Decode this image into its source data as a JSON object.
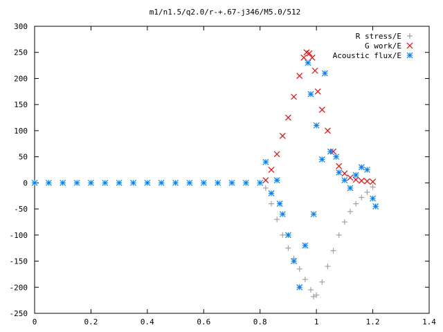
{
  "chart_data": {
    "type": "scatter",
    "title": "m1/n1.5/q2.0/r-+.67-j346/M5.0/512",
    "xlabel": "",
    "ylabel": "",
    "xlim": [
      0,
      1.4
    ],
    "ylim": [
      -250,
      300
    ],
    "xticks": [
      "0",
      "0.2",
      "0.4",
      "0.6",
      "0.8",
      "1",
      "1.2",
      "1.4"
    ],
    "yticks": [
      "300",
      "250",
      "200",
      "150",
      "100",
      "50",
      "0",
      "-50",
      "-100",
      "-150",
      "-200",
      "-250"
    ],
    "grid": false,
    "legend_position": "top-right",
    "series": [
      {
        "name": "R stress/E",
        "marker": "plus",
        "color": "#a0a0a0",
        "points": [
          [
            0.82,
            -10
          ],
          [
            0.84,
            -40
          ],
          [
            0.86,
            -70
          ],
          [
            0.88,
            -100
          ],
          [
            0.9,
            -125
          ],
          [
            0.92,
            -145
          ],
          [
            0.94,
            -165
          ],
          [
            0.96,
            -185
          ],
          [
            0.98,
            -205
          ],
          [
            0.99,
            -218
          ],
          [
            1.0,
            -215
          ],
          [
            1.02,
            -190
          ],
          [
            1.04,
            -160
          ],
          [
            1.06,
            -130
          ],
          [
            1.08,
            -100
          ],
          [
            1.1,
            -75
          ],
          [
            1.12,
            -55
          ],
          [
            1.14,
            -40
          ],
          [
            1.16,
            -28
          ],
          [
            1.18,
            -18
          ],
          [
            1.2,
            -8
          ]
        ]
      },
      {
        "name": "G work/E",
        "marker": "cross",
        "color": "#ff0000",
        "points": [
          [
            0.82,
            5
          ],
          [
            0.84,
            25
          ],
          [
            0.86,
            55
          ],
          [
            0.88,
            90
          ],
          [
            0.9,
            125
          ],
          [
            0.92,
            165
          ],
          [
            0.94,
            205
          ],
          [
            0.955,
            240
          ],
          [
            0.965,
            250
          ],
          [
            0.975,
            248
          ],
          [
            0.985,
            240
          ],
          [
            0.995,
            215
          ],
          [
            1.005,
            175
          ],
          [
            1.02,
            140
          ],
          [
            1.04,
            100
          ],
          [
            1.06,
            60
          ],
          [
            1.08,
            32
          ],
          [
            1.1,
            18
          ],
          [
            1.12,
            10
          ],
          [
            1.14,
            6
          ],
          [
            1.16,
            4
          ],
          [
            1.18,
            3
          ],
          [
            1.2,
            2
          ]
        ]
      },
      {
        "name": "Acoustic flux/E",
        "marker": "star",
        "color": "#0080ff",
        "points": [
          [
            0.0,
            0
          ],
          [
            0.05,
            0
          ],
          [
            0.1,
            0
          ],
          [
            0.15,
            0
          ],
          [
            0.2,
            0
          ],
          [
            0.25,
            0
          ],
          [
            0.3,
            0
          ],
          [
            0.35,
            0
          ],
          [
            0.4,
            0
          ],
          [
            0.45,
            0
          ],
          [
            0.5,
            0
          ],
          [
            0.55,
            0
          ],
          [
            0.6,
            0
          ],
          [
            0.65,
            0
          ],
          [
            0.7,
            0
          ],
          [
            0.75,
            0
          ],
          [
            0.8,
            0
          ],
          [
            0.82,
            40
          ],
          [
            0.84,
            -20
          ],
          [
            0.86,
            5
          ],
          [
            0.87,
            -40
          ],
          [
            0.88,
            -60
          ],
          [
            0.9,
            -100
          ],
          [
            0.92,
            -150
          ],
          [
            0.94,
            -200
          ],
          [
            0.96,
            -120
          ],
          [
            0.97,
            230
          ],
          [
            0.98,
            170
          ],
          [
            0.99,
            -60
          ],
          [
            1.0,
            110
          ],
          [
            1.02,
            45
          ],
          [
            1.03,
            210
          ],
          [
            1.05,
            60
          ],
          [
            1.07,
            50
          ],
          [
            1.08,
            20
          ],
          [
            1.1,
            5
          ],
          [
            1.12,
            -10
          ],
          [
            1.14,
            15
          ],
          [
            1.16,
            30
          ],
          [
            1.18,
            25
          ],
          [
            1.2,
            -30
          ],
          [
            1.21,
            -45
          ]
        ]
      }
    ]
  }
}
